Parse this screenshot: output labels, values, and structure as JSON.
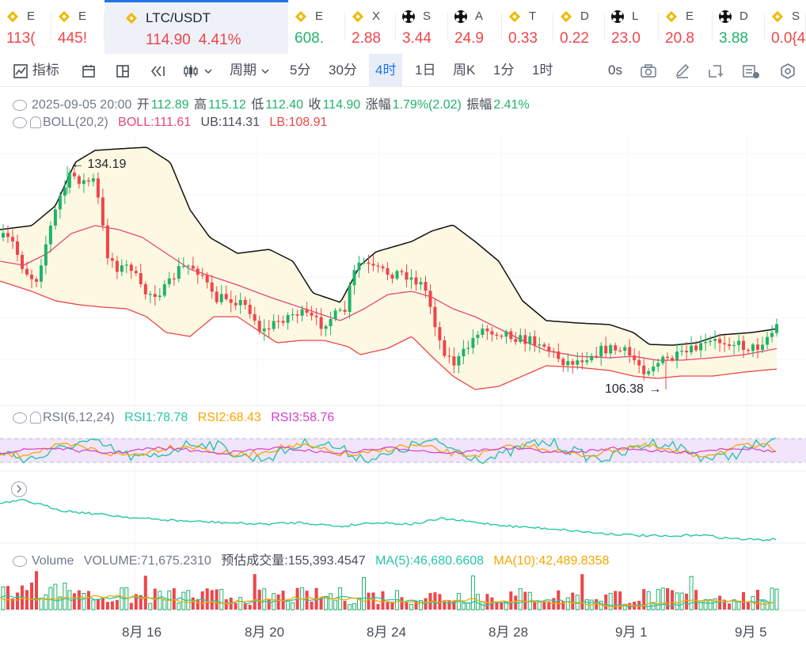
{
  "tickers": [
    {
      "symbol": "E",
      "price": "113(",
      "icon": "bnb-icon",
      "dir": "down"
    },
    {
      "symbol": "E",
      "price": "445!",
      "icon": "bnb-icon",
      "dir": "down"
    },
    {
      "symbol": "LTC/USDT",
      "price": "114.90",
      "change": "4.41%",
      "icon": "bnb-icon",
      "dir": "down",
      "active": true
    },
    {
      "symbol": "E",
      "price": "608.",
      "icon": "bnb-icon",
      "dir": "up"
    },
    {
      "symbol": "X",
      "price": "2.88",
      "icon": "bnb-icon",
      "dir": "down"
    },
    {
      "symbol": "S",
      "price": "3.44",
      "icon": "okx-icon",
      "dir": "down"
    },
    {
      "symbol": "A",
      "price": "24.9",
      "icon": "okx-icon",
      "dir": "down"
    },
    {
      "symbol": "T",
      "price": "0.33",
      "icon": "bnb-icon",
      "dir": "down"
    },
    {
      "symbol": "D",
      "price": "0.22",
      "icon": "bnb-icon",
      "dir": "down"
    },
    {
      "symbol": "L",
      "price": "23.0",
      "icon": "okx-icon",
      "dir": "down"
    },
    {
      "symbol": "E",
      "price": "20.8",
      "icon": "bnb-icon",
      "dir": "down"
    },
    {
      "symbol": "D",
      "price": "3.88",
      "icon": "okx-icon",
      "dir": "up"
    },
    {
      "symbol": "S",
      "price": "0.0{4",
      "icon": "bnb-icon",
      "dir": "down"
    }
  ],
  "toolbar": {
    "indicators": "指标",
    "period": "周期",
    "intervals": [
      "5分",
      "30分",
      "4时",
      "1日",
      "周K",
      "1分",
      "1时"
    ],
    "selected_interval": "4时",
    "countdown": "0s"
  },
  "ohlc": {
    "datetime": "2025-09-05 20:00",
    "open_label": "开",
    "open": "112.89",
    "high_label": "高",
    "high": "115.12",
    "low_label": "低",
    "low": "112.40",
    "close_label": "收",
    "close": "114.90",
    "change_label": "涨幅",
    "change": "1.79%(2.02)",
    "amplitude_label": "振幅",
    "amplitude": "2.41%"
  },
  "boll": {
    "label": "BOLL(20,2)",
    "mid": "BOLL:111.61",
    "ub": "UB:114.31",
    "lb": "LB:108.91"
  },
  "annotations": {
    "high": "134.19",
    "low": "106.38"
  },
  "rsi": {
    "label": "RSI(6,12,24)",
    "rsi1": "RSI1:78.78",
    "rsi2": "RSI2:68.43",
    "rsi3": "RSI3:58.76"
  },
  "volume": {
    "label": "Volume",
    "value": "VOLUME:71,675.2310",
    "estimate": "预估成交量:155,393.4547",
    "ma5": "MA(5):46,680.6608",
    "ma10": "MA(10):42,489.8358"
  },
  "x_labels": [
    "8月 16",
    "8月 20",
    "8月 24",
    "8月 28",
    "9月 1",
    "9月 5"
  ],
  "colors": {
    "up": "#20b26c",
    "down": "#ef454a",
    "accent": "#1e74e8",
    "boll_mid": "#e8477a",
    "boll_fill": "#fdf8e1",
    "rsi_band": "#f1e4fb"
  },
  "chart_data": {
    "type": "candlestick",
    "symbol": "LTC/USDT",
    "price_range": [
      106.38,
      134.19
    ],
    "points": 164
  }
}
